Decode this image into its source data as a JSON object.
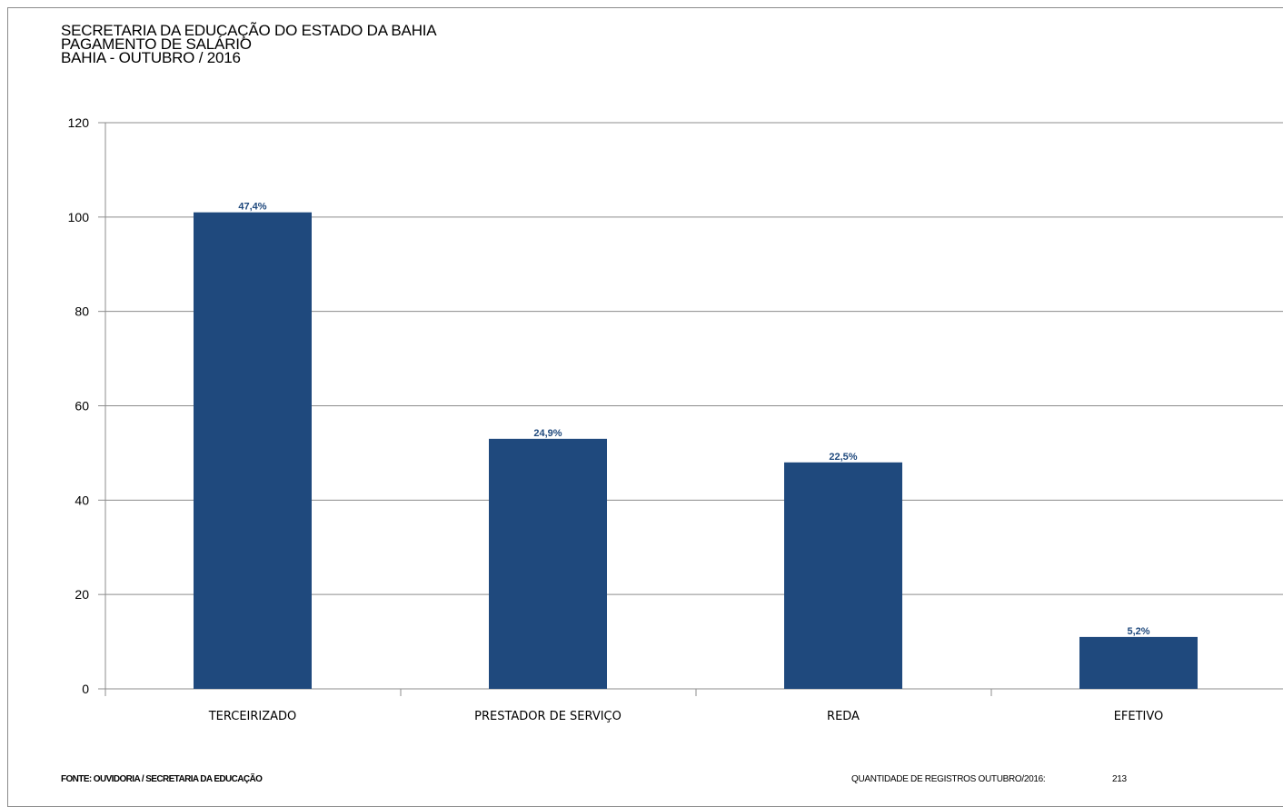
{
  "header": {
    "line1": "SECRETARIA  DA EDUCAÇÃO DO ESTADO DA BAHIA",
    "line2": "PAGAMENTO DE SALÁRIO",
    "line3": "BAHIA - OUTUBRO  / 2016"
  },
  "footer": {
    "source": "FONTE: OUVIDORIA / SECRETARIA DA EDUCAÇÃO",
    "records_label": "QUANTIDADE DE REGISTROS OUTUBRO/2016:",
    "records_value": "213"
  },
  "colors": {
    "bar": "#1f497d",
    "data_label": "#1f497d",
    "grid": "#8c8c8c"
  },
  "chart_data": {
    "type": "bar",
    "categories": [
      "TERCEIRIZADO",
      "PRESTADOR DE SERVIÇO",
      "REDA",
      "EFETIVO"
    ],
    "values": [
      101,
      53,
      48,
      11
    ],
    "data_labels": [
      "47,4%",
      "24,9%",
      "22,5%",
      "5,2%"
    ],
    "ylim": [
      0,
      120
    ],
    "yticks": [
      0,
      20,
      40,
      60,
      80,
      100,
      120
    ],
    "grid": true,
    "xlabel": "",
    "ylabel": ""
  }
}
